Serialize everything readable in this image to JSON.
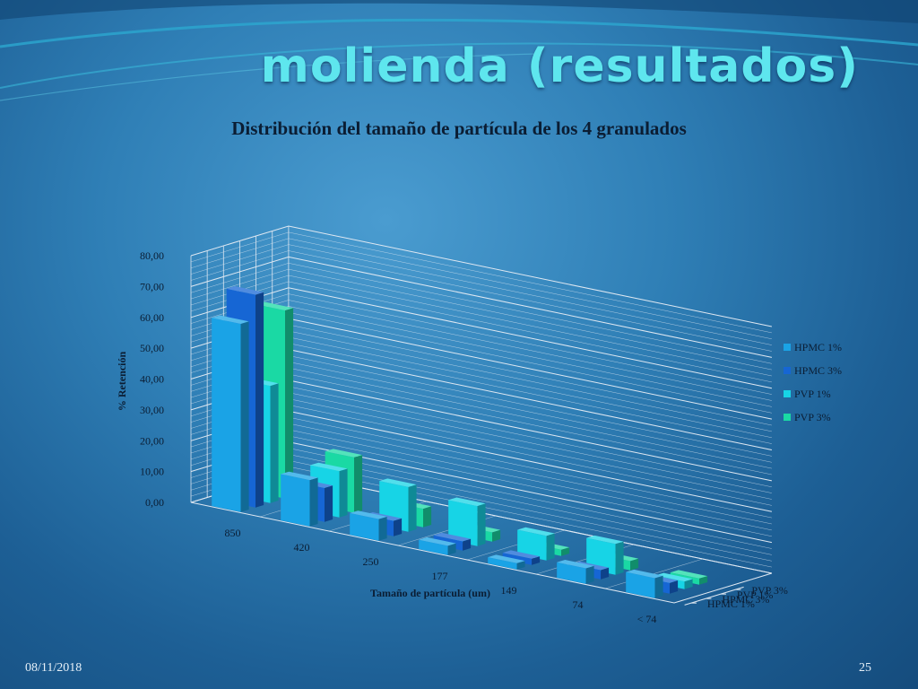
{
  "slide": {
    "title": "molienda (resultados)",
    "date": "08/11/2018",
    "page_number": "25"
  },
  "colors": {
    "HPMC 1%": "#1aa3e6",
    "HPMC 3%": "#1666d4",
    "PVP 1%": "#17d4e6",
    "PVP 3%": "#1ad9a4"
  },
  "chart_data": {
    "type": "bar",
    "subtype": "3d-column",
    "title": "Distribución del tamaño de partícula de los 4 granulados",
    "xlabel": "Tamaño de partícula (um)",
    "ylabel": "% Retención",
    "categories": [
      "850",
      "420",
      "250",
      "177",
      "149",
      "74",
      "< 74"
    ],
    "ylim": [
      0,
      80
    ],
    "yticks": [
      "0,00",
      "10,00",
      "20,00",
      "30,00",
      "40,00",
      "50,00",
      "60,00",
      "70,00",
      "80,00"
    ],
    "legend_position": "right",
    "grid": true,
    "series": [
      {
        "name": "HPMC 1%",
        "values": [
          61.0,
          15.0,
          7.0,
          3.0,
          2.0,
          5.0,
          6.5
        ]
      },
      {
        "name": "HPMC 3%",
        "values": [
          69.0,
          11.0,
          5.0,
          3.0,
          2.0,
          3.0,
          3.5
        ]
      },
      {
        "name": "PVP 1%",
        "values": [
          38.0,
          15.0,
          14.5,
          13.0,
          8.0,
          10.0,
          2.5
        ]
      },
      {
        "name": "PVP 3%",
        "values": [
          61.0,
          18.0,
          6.0,
          3.0,
          2.0,
          3.0,
          2.0
        ]
      }
    ]
  }
}
